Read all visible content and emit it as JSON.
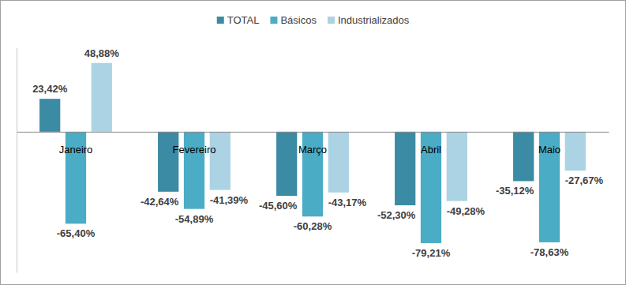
{
  "chart_data": {
    "type": "bar",
    "categories": [
      "Janeiro",
      "Fevereiro",
      "Março",
      "Abril",
      "Maio"
    ],
    "series": [
      {
        "name": "TOTAL",
        "color": "#3a8ba3",
        "values": [
          23.42,
          -42.64,
          -45.6,
          -52.3,
          -35.12
        ],
        "value_labels": [
          "23,42%",
          "-42,64%",
          "-45,60%",
          "-52,30%",
          "-35,12%"
        ]
      },
      {
        "name": "Básicos",
        "color": "#4aacc5",
        "values": [
          -65.4,
          -54.89,
          -60.28,
          -79.21,
          -78.63
        ],
        "value_labels": [
          "-65,40%",
          "-54,89%",
          "-60,28%",
          "-79,21%",
          "-78,63%"
        ]
      },
      {
        "name": "Industrializados",
        "color": "#abd3e3",
        "values": [
          48.88,
          -41.39,
          -43.17,
          -49.28,
          -27.67
        ],
        "value_labels": [
          "48,88%",
          "-41,39%",
          "-43,17%",
          "-49,28%",
          "-27,67%"
        ]
      }
    ],
    "ylim": [
      -100,
      60
    ],
    "yticks": [],
    "grid": false,
    "legend": "top",
    "data_labels": true,
    "tick_labels": "x"
  }
}
